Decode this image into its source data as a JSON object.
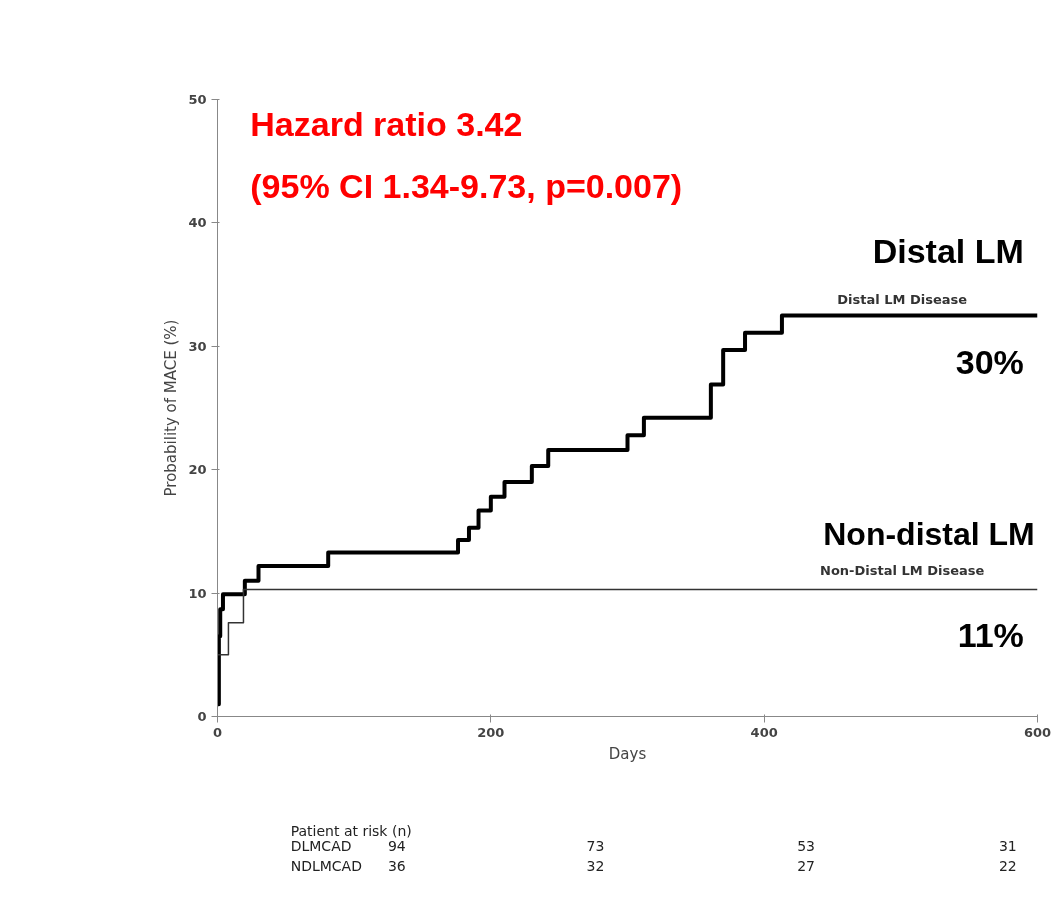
{
  "chart_data": {
    "type": "step",
    "xlabel": "Days",
    "ylabel": "Probability of MACE (%)",
    "xlim": [
      0,
      600
    ],
    "ylim": [
      0,
      50
    ],
    "xticks": [
      0,
      200,
      400,
      600
    ],
    "yticks": [
      0,
      10,
      20,
      30,
      40,
      50
    ],
    "grid": false,
    "series": [
      {
        "name": "Distal LM Disease",
        "color": "#000000",
        "x": [
          0,
          1,
          2,
          4,
          20,
          30,
          81,
          176,
          184,
          191,
          200,
          210,
          230,
          242,
          300,
          312,
          361,
          370,
          386,
          413,
          600
        ],
        "values": [
          1,
          6.5,
          8.7,
          9.9,
          11,
          12.2,
          13.3,
          14.3,
          15.3,
          16.7,
          17.8,
          19,
          20.3,
          21.6,
          22.8,
          24.2,
          26.9,
          29.7,
          31.1,
          32.5,
          32.5
        ]
      },
      {
        "name": "Non-Distal LM Disease",
        "color": "#333333",
        "x": [
          0,
          8,
          19,
          600
        ],
        "values": [
          5,
          7.6,
          10.3,
          10.3
        ]
      }
    ],
    "annotations": [
      "Hazard ratio 3.42",
      "(95% CI 1.34-9.73, p=0.007)",
      "Distal LM",
      "30%",
      "Non-distal LM",
      "11%",
      "Patient at risk (n)",
      "DLMCAD",
      "94",
      "73",
      "53",
      "31",
      "NDLMCAD",
      "36",
      "32",
      "27",
      "22"
    ]
  }
}
